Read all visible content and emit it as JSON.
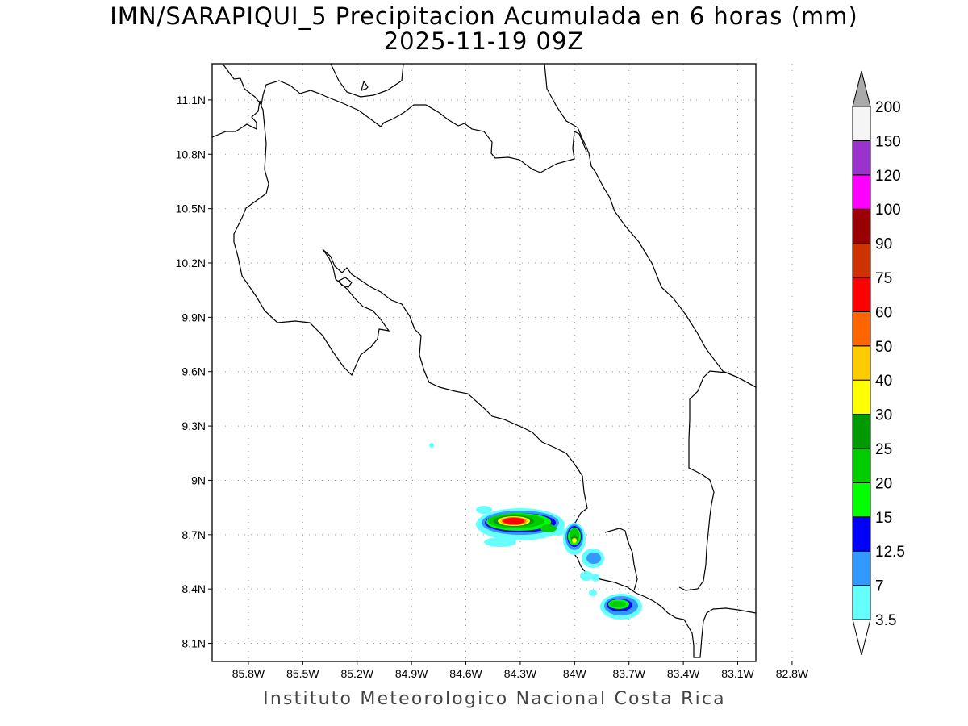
{
  "header": {
    "title_line1": "IMN/SARAPIQUI_5 Precipitacion Acumulada en 6 horas (mm)",
    "title_line2": "2025-11-19 09Z"
  },
  "footer": {
    "text": "Instituto Meteorologico Nacional Costa Rica"
  },
  "map": {
    "lon_range": [
      -86.0,
      -83.0
    ],
    "lat_range": [
      8.0,
      11.3
    ],
    "xaxis_ticks": [
      "85.8W",
      "85.5W",
      "85.2W",
      "84.9W",
      "84.6W",
      "84.3W",
      "84W",
      "83.7W",
      "83.4W",
      "83.1W",
      "82.8W"
    ],
    "yaxis_ticks": [
      "8.1N",
      "8.4N",
      "8.7N",
      "9N",
      "9.3N",
      "9.6N",
      "9.9N",
      "10.2N",
      "10.5N",
      "10.8N",
      "11.1N"
    ],
    "gridlines": true,
    "gridline_style": "dotted"
  },
  "colorbar": {
    "levels": [
      "3.5",
      "7",
      "12.5",
      "15",
      "20",
      "25",
      "30",
      "40",
      "50",
      "60",
      "75",
      "90",
      "100",
      "120",
      "150",
      "200"
    ],
    "colors": [
      "#66ffff",
      "#3399ff",
      "#0000ff",
      "#00ff00",
      "#00cc00",
      "#009900",
      "#ffff00",
      "#ffcc00",
      "#ff6600",
      "#ff0000",
      "#cc3300",
      "#990000",
      "#ff00ff",
      "#9933cc",
      "#f5f5f5",
      "#aaaaaa"
    ],
    "below_color": "#ffffff",
    "above_color": "#aaaaaa"
  }
}
